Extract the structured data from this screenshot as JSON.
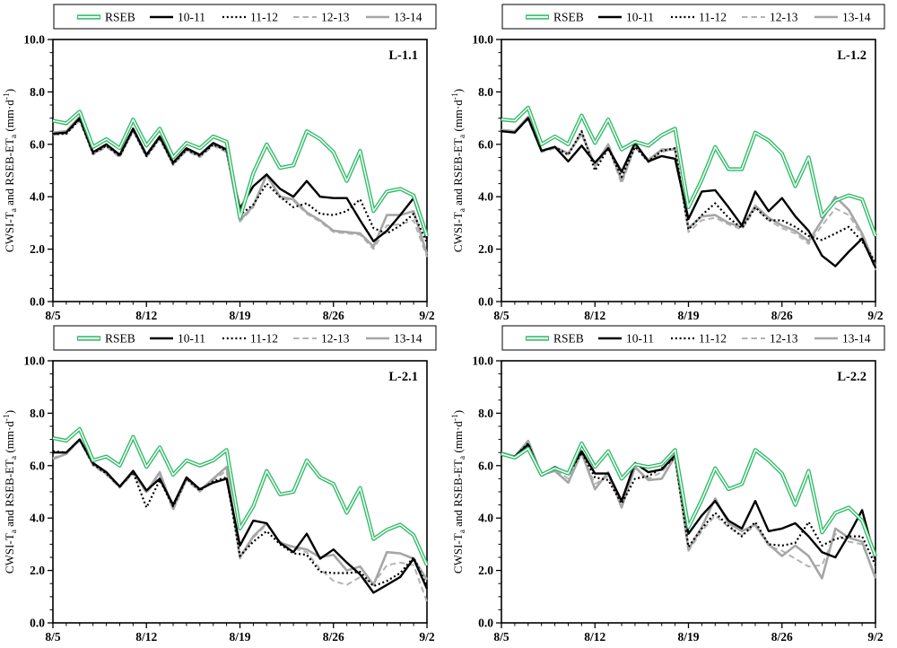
{
  "figure": {
    "background": "#ffffff",
    "n_panels": 4
  },
  "legend": {
    "items": [
      {
        "label": "RSEB",
        "style": "rseb",
        "color": "#2CB964"
      },
      {
        "label": "10-11",
        "style": "solid",
        "color": "#000000"
      },
      {
        "label": "11-12",
        "style": "dotted",
        "color": "#000000"
      },
      {
        "label": "12-13",
        "style": "dashed",
        "color": "#b3b3b3"
      },
      {
        "label": "13-14",
        "style": "gray",
        "color": "#a6a6a6"
      }
    ],
    "position": "top-center-boxed"
  },
  "axes": {
    "y_title": "CWSI-Ta and RSEB-ETa (mm·d-1)",
    "y_title_segments": [
      {
        "t": "CWSI-T"
      },
      {
        "t": "a",
        "sub": true
      },
      {
        "t": " and RSEB-ET"
      },
      {
        "t": "a",
        "sub": true
      },
      {
        "t": " (mm·d"
      },
      {
        "t": "-1",
        "sup": true
      },
      {
        "t": ")"
      }
    ],
    "ylim": [
      0,
      10
    ],
    "y_major_step": 2,
    "y_minor_step": 0.5,
    "y_tick_labels": [
      "0.0",
      "2.0",
      "4.0",
      "6.0",
      "8.0",
      "10.0"
    ],
    "x_tick_labels": [
      "8/5",
      "8/12",
      "8/19",
      "8/26",
      "9/2"
    ],
    "x_tick_days": [
      0,
      7,
      14,
      21,
      28
    ],
    "grid": false
  },
  "chart_data": {
    "type": "line",
    "x_dates": [
      "8/5",
      "8/6",
      "8/7",
      "8/8",
      "8/9",
      "8/10",
      "8/11",
      "8/12",
      "8/13",
      "8/14",
      "8/15",
      "8/16",
      "8/17",
      "8/18",
      "8/19",
      "8/20",
      "8/21",
      "8/22",
      "8/23",
      "8/24",
      "8/25",
      "8/26",
      "8/27",
      "8/28",
      "8/29",
      "8/30",
      "8/31",
      "9/1",
      "9/2"
    ],
    "ylim": [
      0,
      10
    ],
    "legend_entries": [
      "RSEB",
      "10-11",
      "11-12",
      "12-13",
      "13-14"
    ],
    "panels": [
      {
        "label": "L-1.1",
        "series": [
          {
            "name": "RSEB",
            "values": [
              6.9,
              6.8,
              7.25,
              5.9,
              6.2,
              5.85,
              6.95,
              5.95,
              6.6,
              5.5,
              6.05,
              5.85,
              6.3,
              6.1,
              3.2,
              4.9,
              6.0,
              5.1,
              5.2,
              6.5,
              6.2,
              5.7,
              4.6,
              5.75,
              3.45,
              4.2,
              4.3,
              4.05,
              2.5
            ]
          },
          {
            "name": "10-11",
            "values": [
              6.4,
              6.45,
              7.0,
              5.7,
              6.0,
              5.6,
              6.6,
              5.6,
              6.3,
              5.3,
              5.85,
              5.6,
              6.05,
              5.8,
              3.55,
              4.4,
              4.85,
              4.3,
              4.0,
              4.6,
              4.0,
              3.95,
              3.95,
              3.1,
              2.3,
              2.7,
              3.3,
              3.95,
              2.4
            ]
          },
          {
            "name": "11-12",
            "values": [
              6.4,
              6.4,
              6.95,
              5.65,
              5.95,
              5.55,
              6.55,
              5.55,
              6.25,
              5.25,
              5.8,
              5.55,
              6.0,
              5.75,
              3.3,
              3.7,
              4.5,
              4.0,
              3.6,
              3.75,
              3.35,
              3.3,
              3.45,
              3.9,
              2.8,
              2.6,
              2.9,
              3.35,
              2.25
            ]
          },
          {
            "name": "12-13",
            "values": [
              6.35,
              6.4,
              6.9,
              5.6,
              5.9,
              5.5,
              6.5,
              5.5,
              6.2,
              5.2,
              5.75,
              5.5,
              5.95,
              5.7,
              3.05,
              3.6,
              4.8,
              3.95,
              3.85,
              3.35,
              3.05,
              2.65,
              2.6,
              2.55,
              2.0,
              2.9,
              2.95,
              3.1,
              1.7
            ]
          },
          {
            "name": "13-14",
            "values": [
              6.45,
              6.5,
              7.05,
              5.65,
              5.95,
              5.55,
              6.55,
              5.55,
              6.25,
              5.25,
              5.8,
              5.55,
              6.0,
              5.75,
              3.1,
              3.65,
              4.85,
              4.0,
              3.9,
              3.4,
              3.1,
              2.7,
              2.65,
              2.6,
              2.1,
              3.3,
              3.3,
              3.45,
              1.8
            ]
          }
        ]
      },
      {
        "label": "L-1.2",
        "series": [
          {
            "name": "RSEB",
            "values": [
              6.95,
              6.9,
              7.4,
              6.0,
              6.3,
              6.0,
              7.1,
              6.05,
              6.95,
              5.8,
              6.1,
              5.95,
              6.35,
              6.6,
              3.6,
              4.65,
              5.9,
              5.05,
              5.05,
              6.45,
              6.15,
              5.65,
              4.4,
              5.5,
              3.25,
              3.85,
              4.05,
              3.9,
              2.5
            ]
          },
          {
            "name": "10-11",
            "values": [
              6.5,
              6.45,
              7.0,
              5.75,
              5.9,
              5.35,
              5.95,
              5.3,
              5.85,
              4.95,
              6.05,
              5.35,
              5.55,
              5.45,
              3.15,
              4.2,
              4.25,
              3.6,
              2.9,
              4.2,
              3.45,
              3.95,
              3.25,
              2.7,
              1.75,
              1.35,
              1.9,
              2.4,
              1.3
            ]
          },
          {
            "name": "11-12",
            "values": [
              6.5,
              6.45,
              7.0,
              5.75,
              5.9,
              5.6,
              6.5,
              5.0,
              5.85,
              4.75,
              5.9,
              5.35,
              5.75,
              5.85,
              2.75,
              3.3,
              3.75,
              3.2,
              2.8,
              3.6,
              3.1,
              3.1,
              2.85,
              2.5,
              2.35,
              2.6,
              2.85,
              2.3,
              1.5
            ]
          },
          {
            "name": "12-13",
            "values": [
              6.5,
              6.45,
              6.95,
              5.7,
              5.85,
              5.6,
              6.5,
              5.15,
              5.9,
              4.5,
              5.9,
              5.3,
              5.7,
              5.85,
              2.65,
              3.1,
              3.2,
              2.95,
              2.75,
              3.55,
              3.1,
              2.8,
              2.6,
              2.2,
              2.9,
              3.55,
              3.3,
              2.5,
              1.2
            ]
          },
          {
            "name": "13-14",
            "values": [
              6.55,
              6.5,
              7.05,
              5.75,
              5.9,
              5.65,
              6.4,
              5.2,
              6.0,
              4.6,
              5.95,
              5.4,
              5.8,
              5.8,
              2.8,
              3.25,
              3.3,
              3.0,
              2.85,
              3.65,
              3.2,
              2.9,
              2.7,
              2.3,
              3.1,
              4.0,
              3.5,
              2.6,
              1.35
            ]
          }
        ]
      },
      {
        "label": "L-2.1",
        "series": [
          {
            "name": "RSEB",
            "values": [
              7.05,
              6.95,
              7.4,
              6.2,
              6.35,
              6.0,
              7.1,
              5.95,
              6.7,
              5.65,
              6.2,
              6.0,
              6.2,
              6.6,
              3.6,
              4.45,
              5.8,
              4.9,
              5.0,
              6.2,
              5.55,
              5.3,
              4.2,
              5.15,
              3.2,
              3.55,
              3.75,
              3.35,
              2.2
            ]
          },
          {
            "name": "10-11",
            "values": [
              6.5,
              6.5,
              7.0,
              6.1,
              5.75,
              5.2,
              5.8,
              5.05,
              5.5,
              4.5,
              5.55,
              5.1,
              5.35,
              5.5,
              2.95,
              3.9,
              3.8,
              3.05,
              2.7,
              3.4,
              2.45,
              2.8,
              2.3,
              1.85,
              1.15,
              1.45,
              1.75,
              2.45,
              1.3
            ]
          },
          {
            "name": "11-12",
            "values": [
              6.55,
              6.5,
              7.0,
              6.05,
              5.7,
              5.2,
              5.75,
              4.4,
              5.45,
              4.45,
              5.5,
              5.05,
              5.4,
              5.55,
              2.55,
              3.1,
              3.5,
              3.0,
              2.65,
              2.6,
              1.95,
              1.9,
              1.9,
              1.95,
              1.4,
              1.6,
              1.9,
              2.5,
              1.4
            ]
          },
          {
            "name": "12-13",
            "values": [
              6.3,
              6.45,
              6.95,
              6.0,
              5.65,
              5.15,
              5.7,
              4.95,
              5.6,
              4.3,
              5.45,
              5.0,
              5.45,
              5.8,
              2.45,
              3.25,
              3.75,
              3.1,
              2.85,
              2.7,
              2.05,
              1.6,
              1.45,
              1.75,
              1.5,
              2.2,
              2.3,
              2.2,
              0.8
            ]
          },
          {
            "name": "13-14",
            "values": [
              6.25,
              6.45,
              7.0,
              6.05,
              5.7,
              5.2,
              5.75,
              5.0,
              5.75,
              4.35,
              5.5,
              5.05,
              5.5,
              5.95,
              2.5,
              3.3,
              3.8,
              3.05,
              2.9,
              2.8,
              2.5,
              2.6,
              2.0,
              2.15,
              1.45,
              2.7,
              2.65,
              2.45,
              1.65
            ]
          }
        ]
      },
      {
        "label": "L-2.2",
        "series": [
          {
            "name": "RSEB",
            "values": [
              6.45,
              6.3,
              6.65,
              5.65,
              5.9,
              5.7,
              6.85,
              5.95,
              6.55,
              5.5,
              6.05,
              5.95,
              6.05,
              6.6,
              3.65,
              4.7,
              5.9,
              5.1,
              5.3,
              6.6,
              6.2,
              5.7,
              4.5,
              5.8,
              3.45,
              4.2,
              4.4,
              3.9,
              2.55
            ]
          },
          {
            "name": "10-11",
            "values": [
              6.4,
              6.35,
              6.8,
              5.65,
              5.95,
              5.7,
              6.55,
              5.7,
              5.7,
              4.65,
              6.1,
              5.75,
              5.85,
              6.4,
              3.4,
              4.1,
              4.65,
              3.9,
              3.6,
              4.65,
              3.5,
              3.6,
              3.8,
              3.3,
              2.7,
              2.5,
              3.35,
              4.3,
              2.4
            ]
          },
          {
            "name": "11-12",
            "values": [
              6.4,
              6.35,
              6.85,
              5.6,
              5.9,
              5.65,
              6.5,
              5.55,
              5.45,
              4.55,
              5.5,
              5.6,
              5.9,
              6.3,
              2.9,
              3.6,
              4.2,
              3.7,
              3.3,
              3.85,
              3.0,
              2.95,
              3.05,
              3.85,
              2.95,
              3.2,
              3.3,
              3.3,
              2.2
            ]
          },
          {
            "name": "12-13",
            "values": [
              6.45,
              6.35,
              6.9,
              5.65,
              5.85,
              5.5,
              6.45,
              5.3,
              5.6,
              4.45,
              5.9,
              5.5,
              5.75,
              6.35,
              2.75,
              3.5,
              4.1,
              3.65,
              3.35,
              3.7,
              2.95,
              2.75,
              2.45,
              2.15,
              2.2,
              3.4,
              3.1,
              3.0,
              1.8
            ]
          },
          {
            "name": "13-14",
            "values": [
              6.5,
              6.35,
              6.95,
              5.65,
              5.8,
              5.35,
              6.5,
              5.1,
              5.75,
              4.4,
              5.95,
              5.45,
              5.5,
              6.35,
              2.8,
              3.65,
              4.75,
              3.8,
              3.5,
              3.75,
              3.0,
              2.55,
              2.95,
              2.55,
              1.7,
              3.6,
              3.25,
              3.1,
              1.7
            ]
          }
        ]
      }
    ]
  }
}
